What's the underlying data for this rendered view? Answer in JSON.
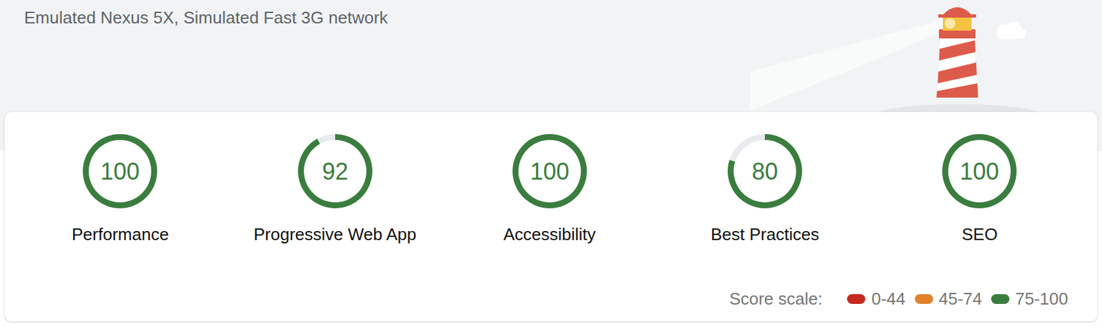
{
  "header": {
    "text": "Emulated Nexus 5X, Simulated Fast 3G network"
  },
  "chart_data": {
    "type": "gauge",
    "categories": [
      "Performance",
      "Progressive Web App",
      "Accessibility",
      "Best Practices",
      "SEO"
    ],
    "values": [
      100,
      92,
      100,
      80,
      100
    ],
    "range": [
      0,
      100
    ],
    "color": "#3a7d3e"
  },
  "score_scale": {
    "label": "Score scale:",
    "items": [
      {
        "label": "0-44",
        "color": "#c5291f"
      },
      {
        "label": "45-74",
        "color": "#e0812a"
      },
      {
        "label": "75-100",
        "color": "#3a7d3e"
      }
    ]
  }
}
